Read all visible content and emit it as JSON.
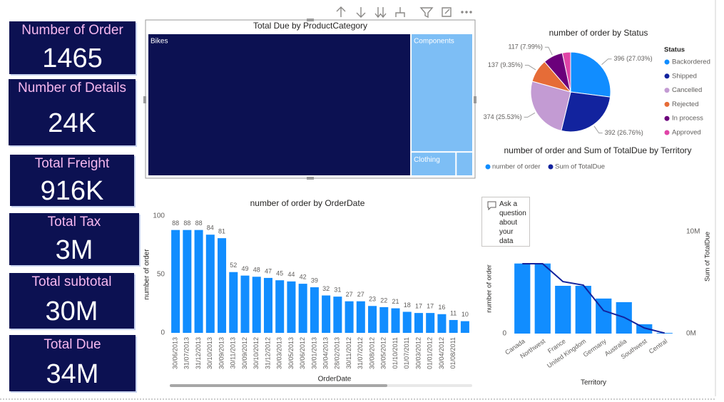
{
  "cards": [
    {
      "label": "Number of Order",
      "value": "1465"
    },
    {
      "label": "Number of Details",
      "value": "24K"
    },
    {
      "label": "Total Freight",
      "value": "916K"
    },
    {
      "label": "Total Tax",
      "value": "3M"
    },
    {
      "label": "Total subtotal",
      "value": "30M"
    },
    {
      "label": "Total Due",
      "value": "34M"
    }
  ],
  "qna": {
    "text": "Ask a question about your data"
  },
  "chart_data": [
    {
      "type": "treemap",
      "title": "Total Due by ProductCategory",
      "categories": [
        "Bikes",
        "Components",
        "Clothing",
        null
      ],
      "values": [
        27600000,
        5400000,
        800000,
        300000
      ],
      "colors": [
        "#0c1152",
        "#7dbef5",
        "#7dbef5",
        "#7dbef5"
      ]
    },
    {
      "type": "pie",
      "title": "number of order by Status",
      "legend_title": "Status",
      "categories": [
        "Backordered",
        "Shipped",
        "Cancelled",
        "Rejected",
        "In process",
        "Approved"
      ],
      "values": [
        396,
        392,
        374,
        137,
        117,
        49
      ],
      "value_labels": [
        "396 (27.03%)",
        "392 (26.76%)",
        "374 (25.53%)",
        "137 (9.35%)",
        "117 (7.99%)",
        null
      ],
      "colors": [
        "#118dff",
        "#12239e",
        "#c39bd3",
        "#e66c37",
        "#6b007b",
        "#e044a7"
      ]
    },
    {
      "type": "combo",
      "title": "number of order and Sum of TotalDue by Territory",
      "xlabel": "Territory",
      "ylabel": "number of order",
      "y2label": "Sum of TotalDue",
      "categories": [
        "Canada",
        "Northwest",
        "France",
        "United Kingdom",
        "Germany",
        "Australia",
        "Southwest",
        "Central"
      ],
      "series": [
        {
          "name": "number of order",
          "color": "#118dff",
          "values": [
            330,
            330,
            225,
            225,
            165,
            148,
            44,
            3
          ]
        },
        {
          "name": "Sum of TotalDue",
          "color": "#12239e",
          "axis": "y2",
          "values": [
            6850000,
            6850000,
            5100000,
            4750000,
            2250000,
            1600000,
            550000,
            50000
          ]
        }
      ],
      "ylim": [
        0,
        480
      ],
      "yticks": [
        0
      ],
      "y2lim": [
        0,
        10000000
      ],
      "y2ticks": [
        {
          "value": 0,
          "label": "0M"
        },
        {
          "value": 10000000,
          "label": "10M"
        }
      ]
    },
    {
      "type": "bar",
      "title": "number of order by OrderDate",
      "xlabel": "OrderDate",
      "ylabel": "number of order",
      "categories": [
        "30/06/2013",
        "31/07/2013",
        "31/12/2013",
        "30/10/2013",
        "30/09/2013",
        "30/11/2013",
        "30/09/2012",
        "30/10/2012",
        "31/12/2012",
        "30/03/2013",
        "30/05/2013",
        "30/06/2012",
        "30/01/2013",
        "30/04/2013",
        "28/02/2013",
        "30/11/2012",
        "31/07/2012",
        "30/08/2012",
        "30/05/2012",
        "01/10/2011",
        "01/07/2011",
        "30/03/2012",
        "01/01/2012",
        "30/04/2012",
        "01/08/2011",
        null
      ],
      "values": [
        88,
        88,
        88,
        84,
        81,
        52,
        49,
        48,
        47,
        45,
        44,
        42,
        39,
        32,
        31,
        27,
        27,
        23,
        22,
        21,
        18,
        17,
        17,
        16,
        11,
        10
      ],
      "color": "#118dff",
      "ylim": [
        0,
        100
      ],
      "yticks": [
        0,
        50,
        100
      ]
    }
  ]
}
